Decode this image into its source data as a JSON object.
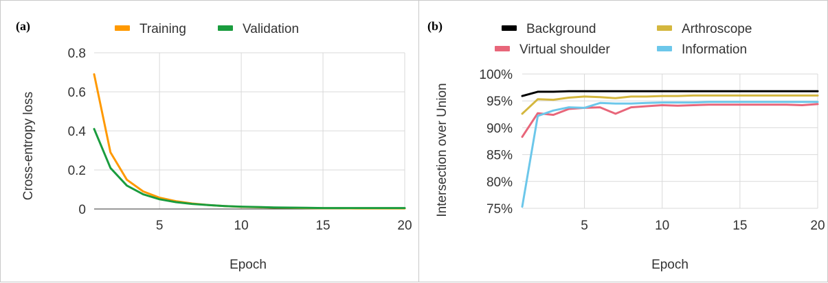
{
  "chart_data": [
    {
      "type": "line",
      "panel_label": "(a)",
      "xlabel": "Epoch",
      "ylabel": "Cross-entropy loss",
      "xlim": [
        1,
        20
      ],
      "ylim": [
        0,
        0.8
      ],
      "x_ticks": [
        5,
        10,
        15,
        20
      ],
      "y_ticks": [
        0,
        0.2,
        0.4,
        0.6,
        0.8
      ],
      "y_tick_labels": [
        "0",
        "0.2",
        "0.4",
        "0.6",
        "0.8"
      ],
      "grid": true,
      "legend_position": "top",
      "x": [
        1,
        2,
        3,
        4,
        5,
        6,
        7,
        8,
        9,
        10,
        11,
        12,
        13,
        14,
        15,
        16,
        17,
        18,
        19,
        20
      ],
      "series": [
        {
          "name": "Training",
          "color": "#ff9900",
          "values": [
            0.69,
            0.29,
            0.15,
            0.09,
            0.058,
            0.04,
            0.028,
            0.02,
            0.015,
            0.011,
            0.009,
            0.007,
            0.006,
            0.005,
            0.004,
            0.004,
            0.003,
            0.003,
            0.003,
            0.003
          ]
        },
        {
          "name": "Validation",
          "color": "#1a9c3e",
          "values": [
            0.41,
            0.21,
            0.12,
            0.075,
            0.05,
            0.035,
            0.026,
            0.02,
            0.015,
            0.012,
            0.01,
            0.008,
            0.007,
            0.006,
            0.005,
            0.005,
            0.005,
            0.005,
            0.005,
            0.005
          ]
        }
      ]
    },
    {
      "type": "line",
      "panel_label": "(b)",
      "xlabel": "Epoch",
      "ylabel": "Intersection over Union",
      "xlim": [
        1,
        20
      ],
      "ylim": [
        75,
        100
      ],
      "x_ticks": [
        5,
        10,
        15,
        20
      ],
      "y_ticks": [
        75,
        80,
        85,
        90,
        95,
        100
      ],
      "y_tick_labels": [
        "75%",
        "80%",
        "85%",
        "90%",
        "95%",
        "100%"
      ],
      "grid": true,
      "legend_position": "top",
      "x": [
        1,
        2,
        3,
        4,
        5,
        6,
        7,
        8,
        9,
        10,
        11,
        12,
        13,
        14,
        15,
        16,
        17,
        18,
        19,
        20
      ],
      "series": [
        {
          "name": "Background",
          "color": "#000000",
          "values": [
            95.9,
            96.7,
            96.7,
            96.8,
            96.8,
            96.8,
            96.8,
            96.8,
            96.8,
            96.8,
            96.8,
            96.8,
            96.8,
            96.8,
            96.8,
            96.8,
            96.8,
            96.8,
            96.8,
            96.8
          ]
        },
        {
          "name": "Arthroscope",
          "color": "#d4b73e",
          "values": [
            92.6,
            95.3,
            95.2,
            95.6,
            95.8,
            95.7,
            95.5,
            95.8,
            95.8,
            95.9,
            95.9,
            96.0,
            96.0,
            96.0,
            96.0,
            96.0,
            96.0,
            96.0,
            96.0,
            96.0
          ]
        },
        {
          "name": "Virtual shoulder",
          "color": "#e8667a",
          "values": [
            88.3,
            92.7,
            92.4,
            93.5,
            93.7,
            93.8,
            92.6,
            93.8,
            94.0,
            94.2,
            94.1,
            94.2,
            94.3,
            94.3,
            94.3,
            94.3,
            94.3,
            94.3,
            94.2,
            94.4
          ]
        },
        {
          "name": "Information",
          "color": "#6cc7ea",
          "values": [
            75.3,
            92.2,
            93.2,
            93.8,
            93.7,
            94.6,
            94.5,
            94.5,
            94.6,
            94.7,
            94.7,
            94.7,
            94.8,
            94.8,
            94.8,
            94.8,
            94.8,
            94.8,
            94.8,
            94.8
          ]
        }
      ]
    }
  ]
}
